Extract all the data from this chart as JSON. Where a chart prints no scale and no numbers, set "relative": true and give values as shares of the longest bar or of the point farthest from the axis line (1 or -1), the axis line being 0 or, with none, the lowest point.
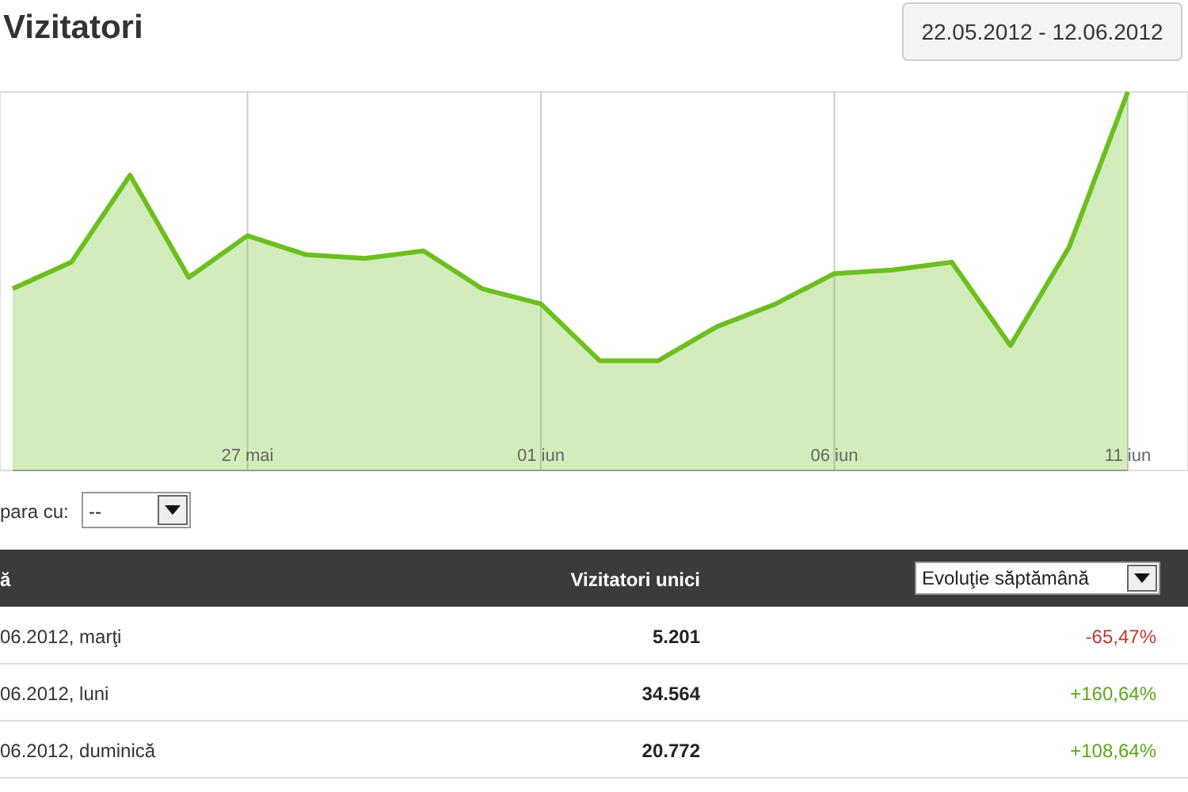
{
  "chart_data": [
    {
      "type": "area",
      "title": "Vizitatori",
      "annotations": [
        "22.05.2012 - 12.06.2012"
      ],
      "x": [
        "2012-05-23",
        "2012-05-24",
        "2012-05-25",
        "2012-05-26",
        "2012-05-27",
        "2012-05-28",
        "2012-05-29",
        "2012-05-30",
        "2012-05-31",
        "2012-06-01",
        "2012-06-02",
        "2012-06-03",
        "2012-06-04",
        "2012-06-05",
        "2012-06-06",
        "2012-06-07",
        "2012-06-08",
        "2012-06-09",
        "2012-06-10",
        "2012-06-11"
      ],
      "values": [
        0.48,
        0.55,
        0.78,
        0.51,
        0.62,
        0.57,
        0.56,
        0.58,
        0.48,
        0.44,
        0.29,
        0.29,
        0.38,
        0.44,
        0.52,
        0.53,
        0.55,
        0.33,
        0.59,
        1
      ],
      "color": "#6cbf1f",
      "relative": true,
      "marker": "none",
      "xlim": [
        "2012-05-23",
        "2012-06-11"
      ],
      "xticks": [
        {
          "value": "2012-05-27",
          "label": "27 mai"
        },
        {
          "value": "2012-06-01",
          "label": "01 iun"
        },
        {
          "value": "2012-06-06",
          "label": "06 iun"
        },
        {
          "value": "2012-06-11",
          "label": "11 iun"
        }
      ],
      "grid": "x"
    },
    {
      "type": "other",
      "annotations": [
        "para cu:",
        "--",
        "ă",
        "Vizitatori unici",
        "Evoluţie săptămână",
        "06.2012, marţi",
        "5.201",
        "-65,47%",
        "06.2012, luni",
        "34.564",
        "+160,64%",
        "06.2012, duminică",
        "20.772",
        "+108,64%"
      ]
    }
  ]
}
